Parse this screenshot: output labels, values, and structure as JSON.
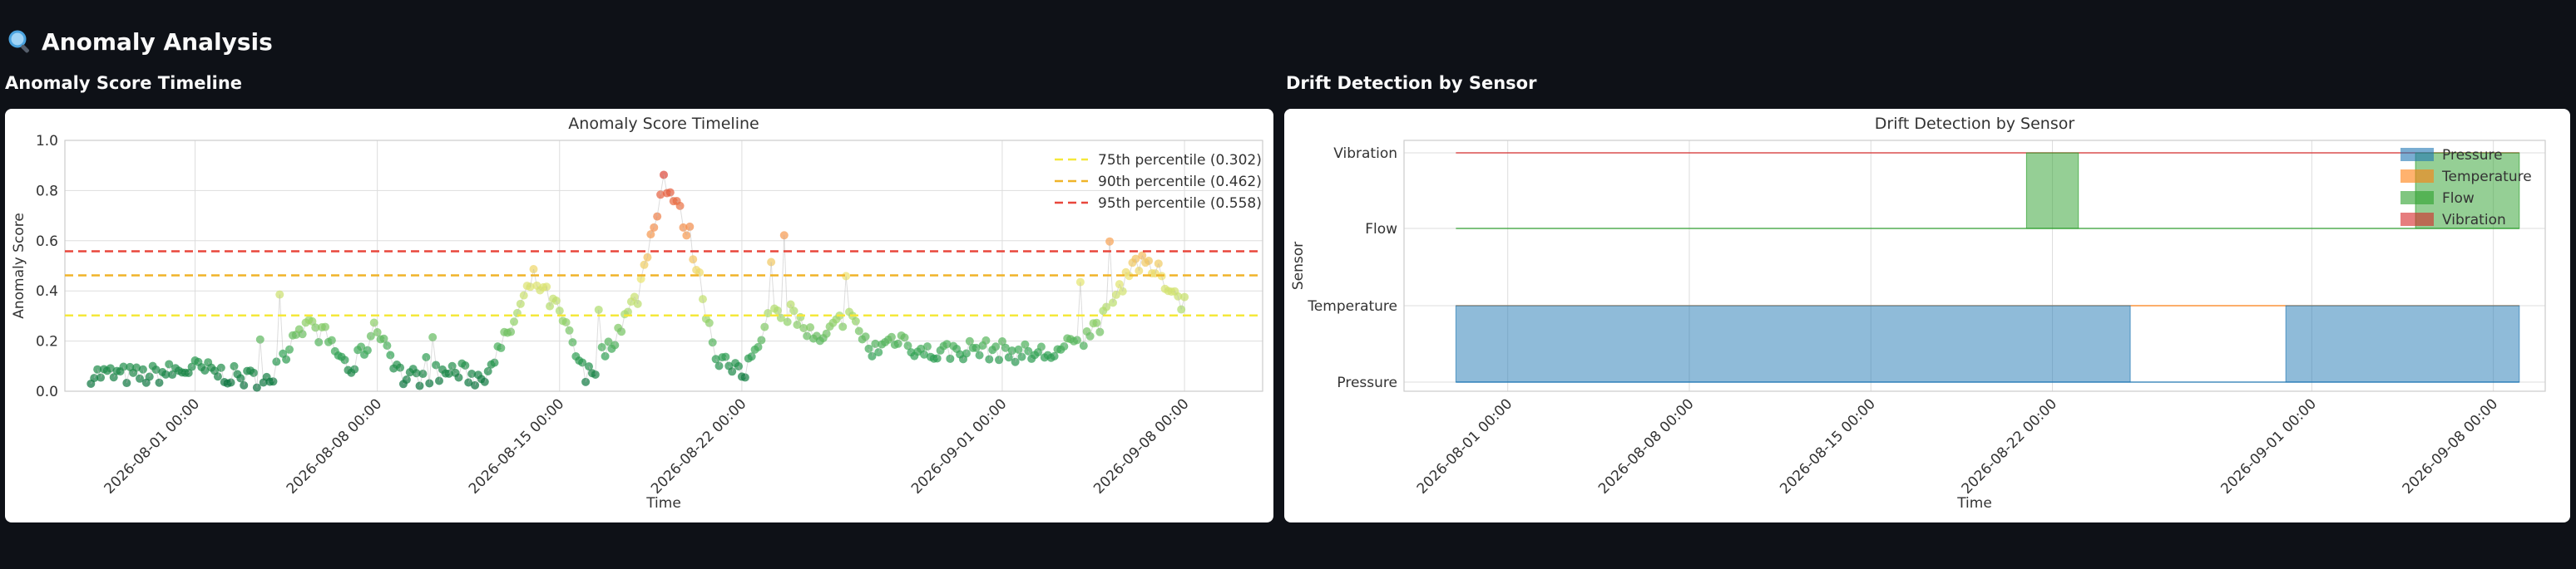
{
  "page": {
    "title": "Anomaly Analysis",
    "title_icon": "magnifier-icon"
  },
  "sections": {
    "anomaly_title": "Anomaly Score Timeline",
    "drift_title": "Drift Detection by Sensor"
  },
  "colors": {
    "background": "#0e1117",
    "p75": "#f5e83a",
    "p90": "#f0b429",
    "p95": "#e8473c",
    "pressure": "#1f77b4",
    "temperature": "#ff7f0e",
    "flow": "#2ca02c",
    "vibration": "#d62728"
  },
  "chart_data": [
    {
      "type": "scatter",
      "title": "Anomaly Score Timeline",
      "xlabel": "Time",
      "ylabel": "Anomaly Score",
      "x_range": [
        "2026-07-27",
        "2026-09-11"
      ],
      "ylim": [
        0,
        1.0
      ],
      "y_ticks": [
        "0.0",
        "0.2",
        "0.4",
        "0.6",
        "0.8",
        "1.0"
      ],
      "x_ticks": [
        "2026-08-01 00:00",
        "2026-08-08 00:00",
        "2026-08-15 00:00",
        "2026-08-22 00:00",
        "2026-09-01 00:00",
        "2026-09-08 00:00"
      ],
      "x_tick_dates": [
        "2026-08-01",
        "2026-08-08",
        "2026-08-15",
        "2026-08-22",
        "2026-09-01",
        "2026-09-08"
      ],
      "grid": true,
      "legend_position": "top-right",
      "colormap": "green-yellow-red by score",
      "thresholds": [
        {
          "label": "75th percentile (0.302)",
          "value": 0.302,
          "color": "#f5e83a"
        },
        {
          "label": "90th percentile (0.462)",
          "value": 0.462,
          "color": "#f0b429"
        },
        {
          "label": "95th percentile (0.558)",
          "value": 0.558,
          "color": "#e8473c"
        }
      ],
      "series_profile": [
        {
          "date": "2026-07-28",
          "score": 0.07
        },
        {
          "date": "2026-07-30",
          "score": 0.06
        },
        {
          "date": "2026-08-01",
          "score": 0.09
        },
        {
          "date": "2026-08-03",
          "score": 0.05
        },
        {
          "date": "2026-08-04",
          "score": 0.06
        },
        {
          "date": "2026-08-05",
          "score": 0.27
        },
        {
          "date": "2026-08-06",
          "score": 0.22
        },
        {
          "date": "2026-08-07",
          "score": 0.08
        },
        {
          "date": "2026-08-08",
          "score": 0.26
        },
        {
          "date": "2026-08-09",
          "score": 0.05
        },
        {
          "date": "2026-08-11",
          "score": 0.08
        },
        {
          "date": "2026-08-12",
          "score": 0.05
        },
        {
          "date": "2026-08-13",
          "score": 0.22
        },
        {
          "date": "2026-08-14",
          "score": 0.45
        },
        {
          "date": "2026-08-15",
          "score": 0.31
        },
        {
          "date": "2026-08-16",
          "score": 0.05
        },
        {
          "date": "2026-08-17",
          "score": 0.2
        },
        {
          "date": "2026-08-18",
          "score": 0.38
        },
        {
          "date": "2026-08-19",
          "score": 0.85
        },
        {
          "date": "2026-08-20",
          "score": 0.62
        },
        {
          "date": "2026-08-21",
          "score": 0.15
        },
        {
          "date": "2026-08-22",
          "score": 0.05
        },
        {
          "date": "2026-08-23",
          "score": 0.3
        },
        {
          "date": "2026-08-24",
          "score": 0.3
        },
        {
          "date": "2026-08-25",
          "score": 0.18
        },
        {
          "date": "2026-08-26",
          "score": 0.31
        },
        {
          "date": "2026-08-27",
          "score": 0.16
        },
        {
          "date": "2026-08-28",
          "score": 0.22
        },
        {
          "date": "2026-08-29",
          "score": 0.15
        },
        {
          "date": "2026-08-31",
          "score": 0.17
        },
        {
          "date": "2026-09-02",
          "score": 0.15
        },
        {
          "date": "2026-09-03",
          "score": 0.15
        },
        {
          "date": "2026-09-04",
          "score": 0.2
        },
        {
          "date": "2026-09-05",
          "score": 0.3
        },
        {
          "date": "2026-09-06",
          "score": 0.52
        },
        {
          "date": "2026-09-07",
          "score": 0.47
        },
        {
          "date": "2026-09-08",
          "score": 0.35
        }
      ]
    },
    {
      "type": "area",
      "title": "Drift Detection by Sensor",
      "xlabel": "Time",
      "ylabel": "Sensor",
      "x_range": [
        "2026-07-28",
        "2026-09-10"
      ],
      "categories": [
        "Pressure",
        "Temperature",
        "Flow",
        "Vibration"
      ],
      "x_ticks": [
        "2026-08-01 00:00",
        "2026-08-08 00:00",
        "2026-08-15 00:00",
        "2026-08-22 00:00",
        "2026-09-01 00:00",
        "2026-09-08 00:00"
      ],
      "x_tick_dates": [
        "2026-08-01",
        "2026-08-08",
        "2026-08-15",
        "2026-08-22",
        "2026-09-01",
        "2026-09-08"
      ],
      "grid": true,
      "legend_position": "top-right",
      "series": [
        {
          "name": "Pressure",
          "color": "#1f77b4",
          "drift_periods": [
            [
              "2026-07-30",
              "2026-08-25"
            ],
            [
              "2026-08-31",
              "2026-09-09"
            ]
          ]
        },
        {
          "name": "Temperature",
          "color": "#ff7f0e",
          "drift_periods": []
        },
        {
          "name": "Flow",
          "color": "#2ca02c",
          "drift_periods": [
            [
              "2026-08-21",
              "2026-08-23"
            ],
            [
              "2026-09-05",
              "2026-09-09"
            ]
          ]
        },
        {
          "name": "Vibration",
          "color": "#d62728",
          "drift_periods": []
        }
      ]
    }
  ]
}
